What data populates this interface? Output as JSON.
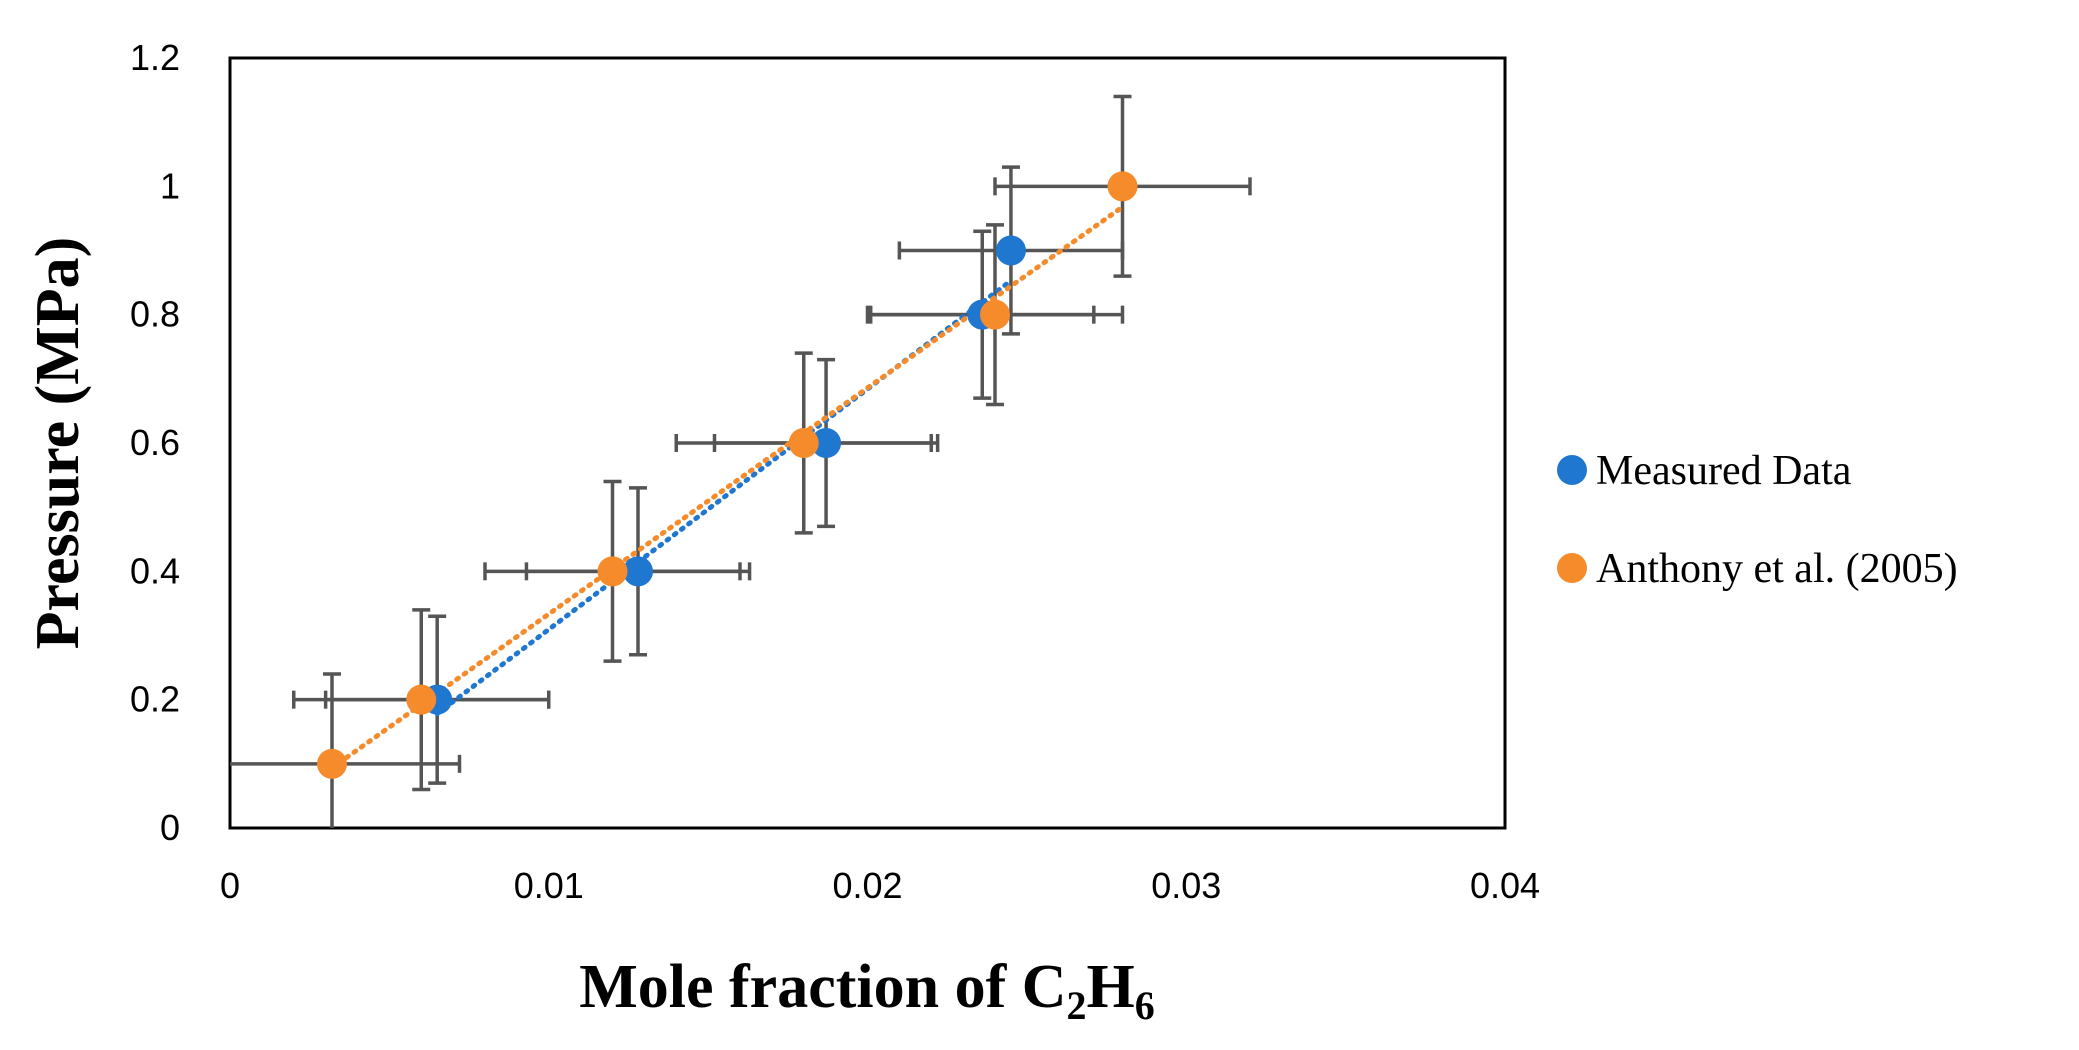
{
  "chart_data": {
    "type": "scatter",
    "xlabel": {
      "text": "Mole fraction of C",
      "sub1": "2",
      "mid": "H",
      "sub2": "6"
    },
    "ylabel": "Pressure (MPa)",
    "xlim": [
      0,
      0.04
    ],
    "ylim": [
      0,
      1.2
    ],
    "x_ticks": [
      "0",
      "0.01",
      "0.02",
      "0.03",
      "0.04"
    ],
    "y_ticks": [
      "0",
      "0.2",
      "0.4",
      "0.6",
      "0.8",
      "1",
      "1.2"
    ],
    "grid": false,
    "legend_position": "right",
    "series": [
      {
        "name": "Measured Data",
        "color": "#1f77d0",
        "trendline": "dotted-linear",
        "points": [
          {
            "x": 0.0065,
            "y": 0.2,
            "xerr": 0.0035,
            "yerr": 0.13
          },
          {
            "x": 0.0128,
            "y": 0.4,
            "xerr": 0.0035,
            "yerr": 0.13
          },
          {
            "x": 0.0187,
            "y": 0.6,
            "xerr": 0.0035,
            "yerr": 0.13
          },
          {
            "x": 0.0236,
            "y": 0.8,
            "xerr": 0.0035,
            "yerr": 0.13
          },
          {
            "x": 0.0245,
            "y": 0.9,
            "xerr": 0.0035,
            "yerr": 0.13
          }
        ]
      },
      {
        "name": "Anthony et al. (2005)",
        "color": "#f58b2b",
        "trendline": "dotted-linear",
        "points": [
          {
            "x": 0.0032,
            "y": 0.1,
            "xerr": 0.004,
            "yerr": 0.14
          },
          {
            "x": 0.006,
            "y": 0.2,
            "xerr": 0.004,
            "yerr": 0.14
          },
          {
            "x": 0.012,
            "y": 0.4,
            "xerr": 0.004,
            "yerr": 0.14
          },
          {
            "x": 0.018,
            "y": 0.6,
            "xerr": 0.004,
            "yerr": 0.14
          },
          {
            "x": 0.024,
            "y": 0.8,
            "xerr": 0.004,
            "yerr": 0.14
          },
          {
            "x": 0.028,
            "y": 1.0,
            "xerr": 0.004,
            "yerr": 0.14
          }
        ]
      }
    ]
  }
}
